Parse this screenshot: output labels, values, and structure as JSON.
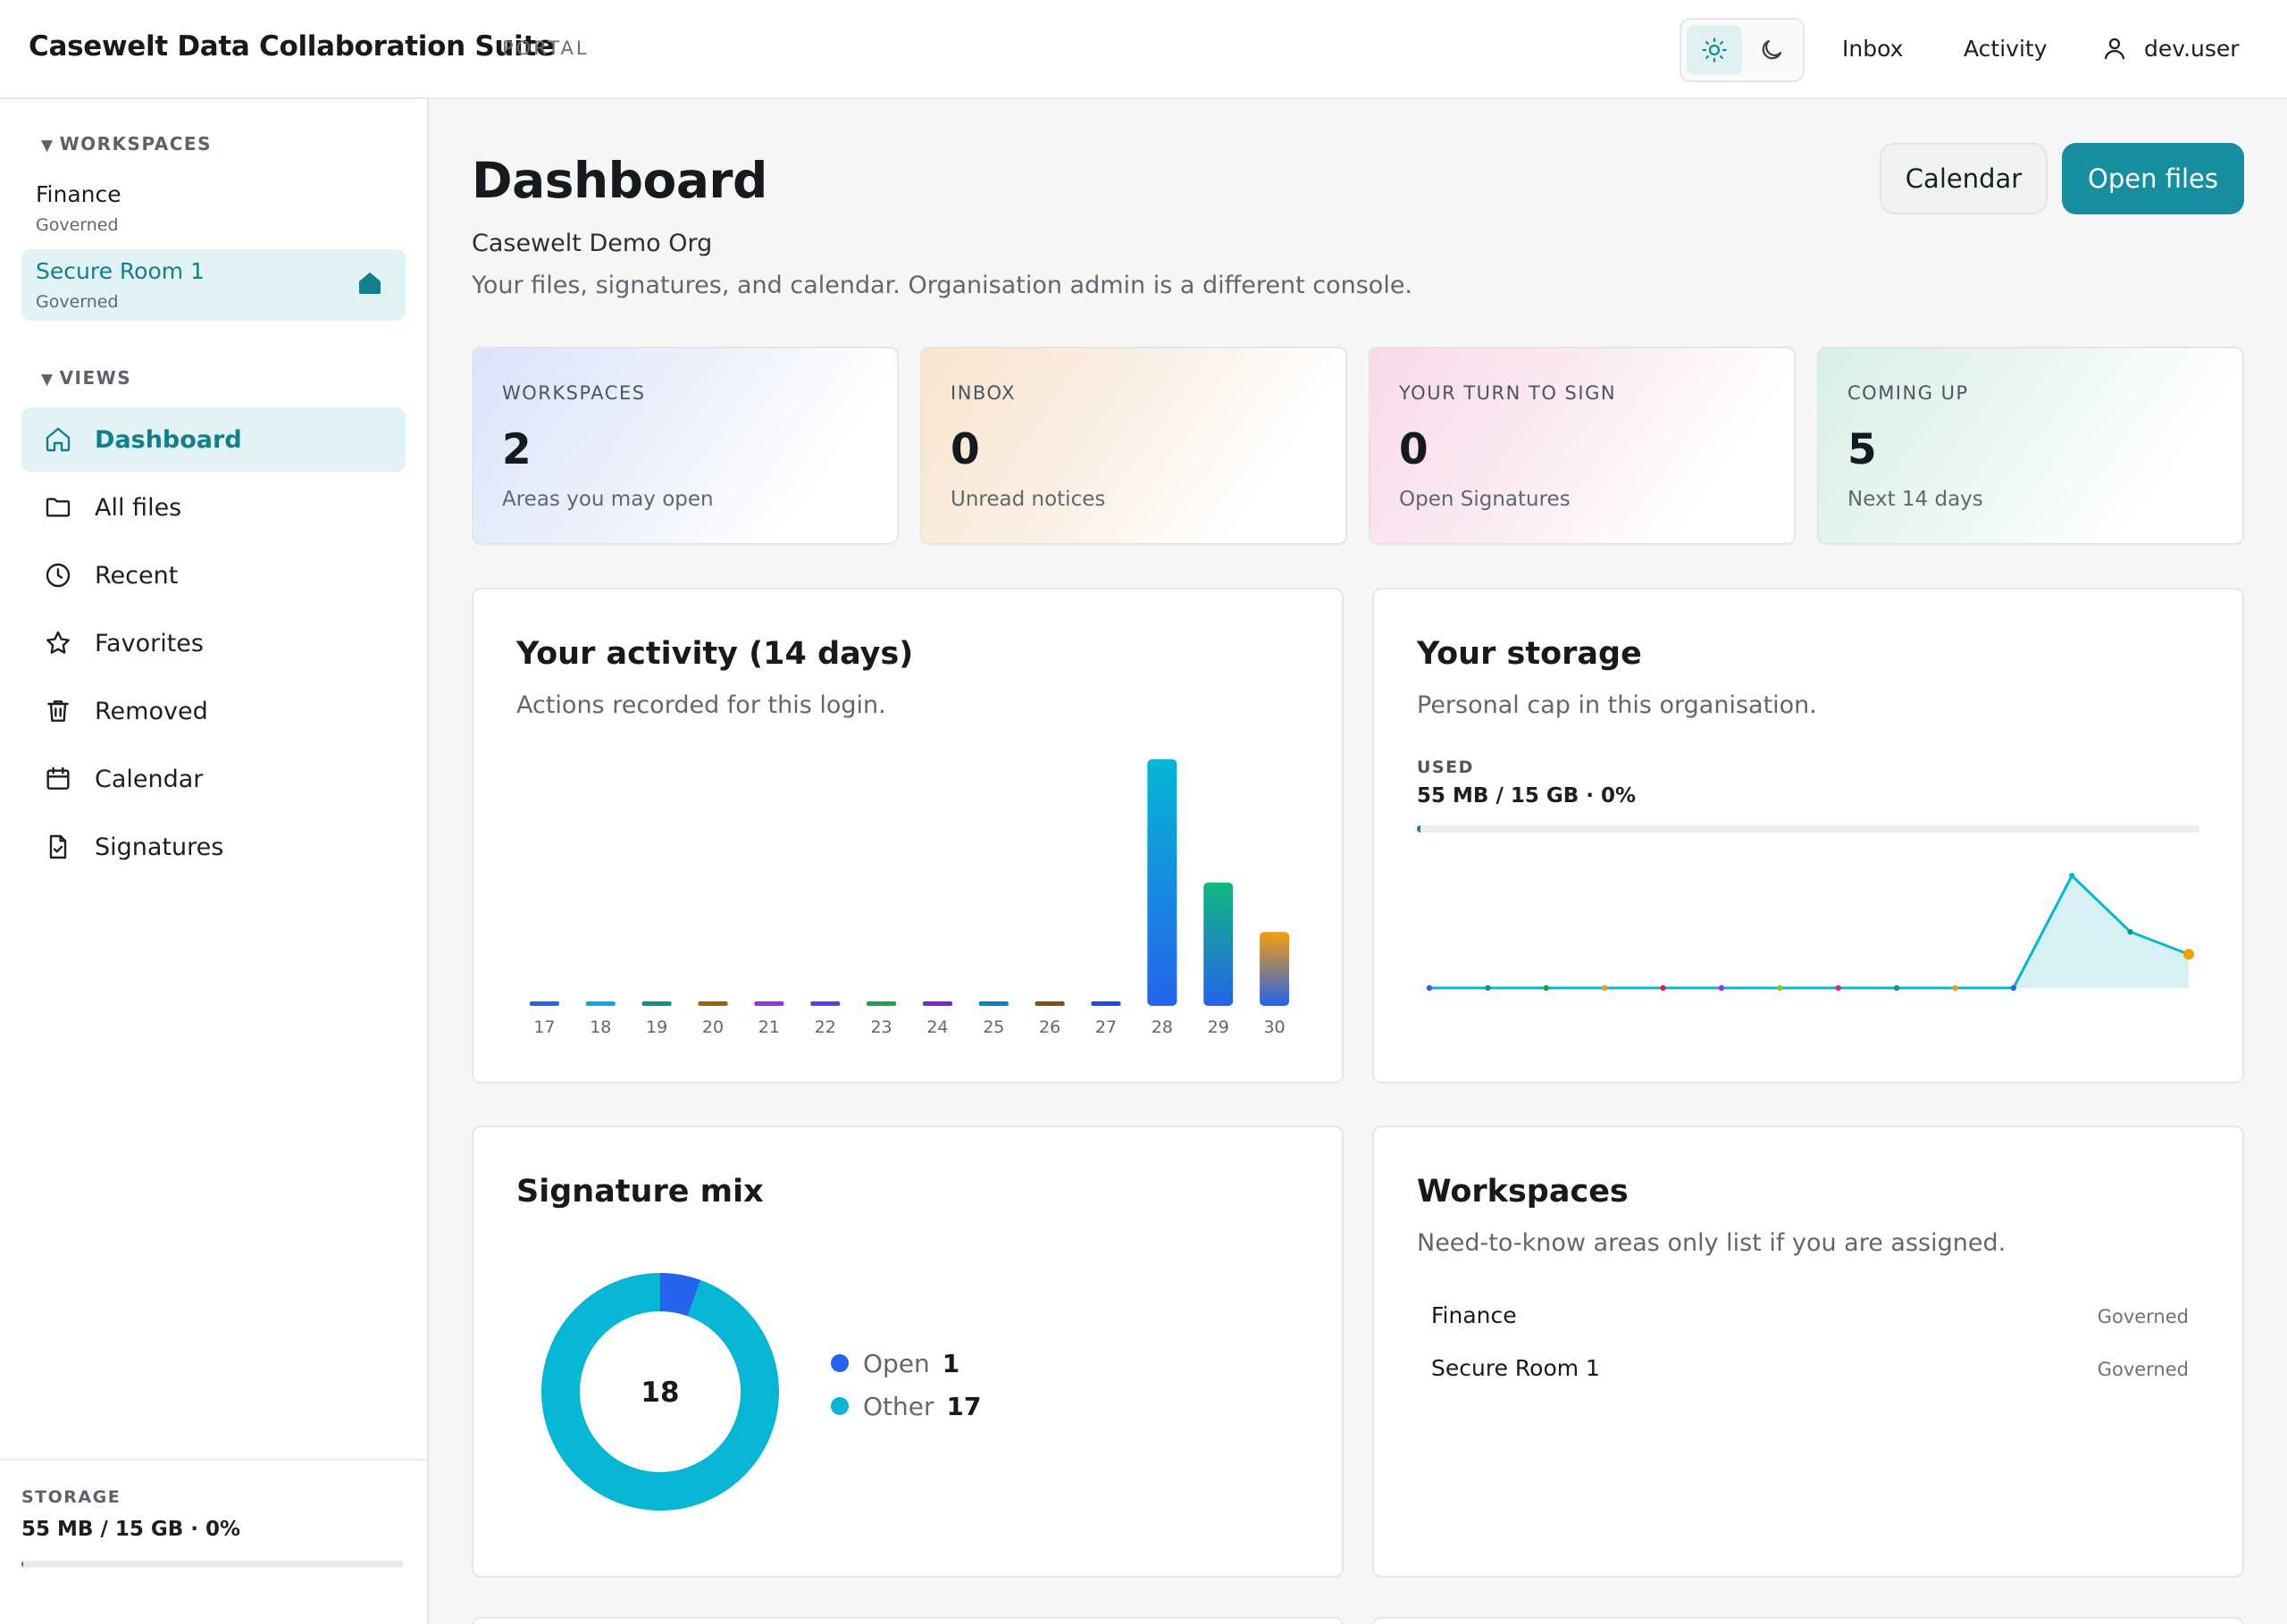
{
  "header": {
    "brand": "Casewelt Data Collaboration Suite",
    "brand_tag": "PORTAL",
    "nav": [
      "Inbox",
      "Activity"
    ],
    "user": "dev.user"
  },
  "sidebar": {
    "workspaces_heading": "WORKSPACES",
    "workspaces": [
      {
        "name": "Finance",
        "sub": "Governed",
        "active": false
      },
      {
        "name": "Secure Room 1",
        "sub": "Governed",
        "active": true
      }
    ],
    "views_heading": "VIEWS",
    "views": [
      {
        "label": "Dashboard",
        "icon": "home-icon",
        "active": true
      },
      {
        "label": "All files",
        "icon": "folder-icon",
        "active": false
      },
      {
        "label": "Recent",
        "icon": "clock-icon",
        "active": false
      },
      {
        "label": "Favorites",
        "icon": "star-icon",
        "active": false
      },
      {
        "label": "Removed",
        "icon": "trash-icon",
        "active": false
      },
      {
        "label": "Calendar",
        "icon": "calendar-icon",
        "active": false
      },
      {
        "label": "Signatures",
        "icon": "signature-doc-icon",
        "active": false
      }
    ],
    "storage_label": "STORAGE",
    "storage_value": "55 MB / 15 GB · 0%",
    "storage_percent": 0.4
  },
  "main": {
    "title": "Dashboard",
    "org": "Casewelt Demo Org",
    "description": "Your files, signatures, and calendar. Organisation admin is a different console.",
    "buttons": {
      "calendar": "Calendar",
      "open_files": "Open files"
    },
    "stats": [
      {
        "label": "WORKSPACES",
        "value": "2",
        "sub": "Areas you may open"
      },
      {
        "label": "INBOX",
        "value": "0",
        "sub": "Unread notices"
      },
      {
        "label": "YOUR TURN TO SIGN",
        "value": "0",
        "sub": "Open Signatures"
      },
      {
        "label": "COMING UP",
        "value": "5",
        "sub": "Next 14 days"
      }
    ],
    "activity": {
      "title": "Your activity (14 days)",
      "subtitle": "Actions recorded for this login."
    },
    "storage": {
      "title": "Your storage",
      "subtitle": "Personal cap in this organisation.",
      "used_label": "USED",
      "used_value": "55 MB / 15 GB · 0%",
      "used_percent": 0.4
    },
    "signature_mix": {
      "title": "Signature mix",
      "total": "18",
      "items": [
        {
          "name": "Open",
          "value": "1"
        },
        {
          "name": "Other",
          "value": "17"
        }
      ]
    },
    "workspaces_panel": {
      "title": "Workspaces",
      "subtitle": "Need-to-know areas only list if you are assigned.",
      "rows": [
        {
          "name": "Finance",
          "tag": "Governed"
        },
        {
          "name": "Secure Room 1",
          "tag": "Governed"
        }
      ]
    }
  },
  "colors": {
    "accent": "#178e9f",
    "open": "#2563eb",
    "other": "#06b6d4"
  },
  "chart_data": [
    {
      "type": "bar",
      "categories": [
        "17",
        "18",
        "19",
        "20",
        "21",
        "22",
        "23",
        "24",
        "25",
        "26",
        "27",
        "28",
        "29",
        "30"
      ],
      "values": [
        0,
        0,
        0,
        0,
        0,
        0,
        0,
        0,
        0,
        0,
        0,
        10,
        5,
        3
      ],
      "ylim": [
        0,
        10
      ],
      "grid": false,
      "bar_colors": [
        "#2563eb",
        "#0ea5e9",
        "#0d9488",
        "#a16207",
        "#9333ea",
        "#4f46e5",
        "#16a34a",
        "#7e22ce",
        "#0284c7",
        "#854d0e",
        "#1d4ed8",
        "#06b6d4",
        "#10b981",
        "#f59e0b"
      ]
    },
    {
      "type": "area",
      "x": [
        1,
        2,
        3,
        4,
        5,
        6,
        7,
        8,
        9,
        10,
        11,
        12,
        13,
        14
      ],
      "values": [
        0,
        0,
        0,
        0,
        0,
        0,
        0,
        0,
        0,
        0,
        0,
        10,
        5,
        3
      ],
      "ylim": [
        0,
        14
      ],
      "point_colors": [
        "#2563eb",
        "#0d9488",
        "#16a34a",
        "#f59e0b",
        "#e11d48",
        "#9333ea",
        "#84cc16",
        "#db2777",
        "#0d9488",
        "#f59e0b",
        "#2563eb",
        "#06b6d4",
        "#0d9488",
        "#f59e0b"
      ]
    },
    {
      "type": "pie",
      "labels": [
        "Open",
        "Other"
      ],
      "values": [
        1,
        17
      ],
      "center_label": "18"
    }
  ]
}
